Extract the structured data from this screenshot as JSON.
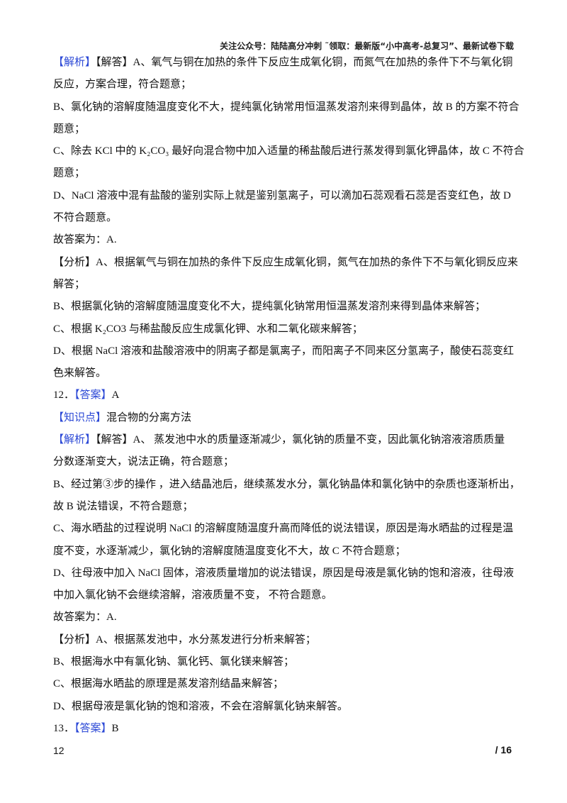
{
  "header": {
    "text": "关注公众号：陆陆高分冲刺  ˜领取：最新版“小中高考-总复习”、最新试卷下载"
  },
  "lines": [
    [
      {
        "tag": "【解析】"
      },
      {
        "text": "【解答】A、氧气与铜在加热的条件下反应生成氧化铜，而氮气在加热的条件下不与氧化铜"
      }
    ],
    [
      {
        "text": "反应，方案合理，符合题意；"
      }
    ],
    [
      {
        "text": "B、氯化钠的溶解度随温度变化不大，提纯氯化钠常用恒温蒸发溶剂来得到晶体，故 B 的方案不符合"
      }
    ],
    [
      {
        "text": "题意；"
      }
    ],
    [
      {
        "text": "C、除去 KCl 中的 K₂CO₃ 最好向混合物中加入适量的稀盐酸后进行蒸发得到氯化钾晶体，故 C 不符合"
      }
    ],
    [
      {
        "text": "题意；"
      }
    ],
    [
      {
        "text": "D、NaCl 溶液中混有盐酸的鉴别实际上就是鉴别氢离子，可以滴加石蕊观看石蕊是否变红色，故 D"
      }
    ],
    [
      {
        "text": "不符合题意。"
      }
    ],
    [
      {
        "text": "故答案为：A."
      }
    ],
    [
      {
        "text": "【分析】A、根据氧气与铜在加热的条件下反应生成氧化铜，氮气在加热的条件下不与氧化铜反应来"
      }
    ],
    [
      {
        "text": "解答；"
      }
    ],
    [
      {
        "text": "B、根据氯化钠的溶解度随温度变化不大，提纯氯化钠常用恒温蒸发溶剂来得到晶体来解答；"
      }
    ],
    [
      {
        "text": "C、根据 K₂CO3 与稀盐酸反应生成氯化钾、水和二氧化碳来解答；"
      }
    ],
    [
      {
        "text": "D、根据 NaCl 溶液和盐酸溶液中的阴离子都是氯离子，而阳离子不同来区分氢离子，酸使石蕊变红"
      }
    ],
    [
      {
        "text": "色来解答。"
      }
    ],
    [
      {
        "text": "12．"
      },
      {
        "tag": "【答案】"
      },
      {
        "text": "A"
      }
    ],
    [
      {
        "tag": "【知识点】"
      },
      {
        "text": "混合物的分离方法"
      }
    ],
    [
      {
        "tag": "【解析】"
      },
      {
        "text": "【解答】A、 蒸发池中水的质量逐渐减少，氯化钠的质量不变，因此氯化钠溶液溶质质量"
      }
    ],
    [
      {
        "text": "分数逐渐变大，说法正确，符合题意；"
      }
    ],
    [
      {
        "text": "B、经过第③步的操作 ，进入结晶池后，继续蒸发水分，氯化钠晶体和氯化钠中的杂质也逐渐析出，"
      }
    ],
    [
      {
        "text": "故 B 说法错误，不符合题意；"
      }
    ],
    [
      {
        "text": "C、海水晒盐的过程说明 NaCl 的溶解度随温度升高而降低的说法错误，原因是海水晒盐的过程是温"
      }
    ],
    [
      {
        "text": "度不变，水逐渐减少，氯化钠的溶解度随温度变化不大，故 C 不符合题意；"
      }
    ],
    [
      {
        "text": "D、往母液中加入 NaCl 固体，溶液质量增加的说法错误，原因是母液是氯化钠的饱和溶液，往母液"
      }
    ],
    [
      {
        "text": "中加入氯化钠不会继续溶解，溶液质量不变， 不符合题意。"
      }
    ],
    [
      {
        "text": "故答案为：A."
      }
    ],
    [
      {
        "text": "【分析】A、根据蒸发池中，水分蒸发进行分析来解答；"
      }
    ],
    [
      {
        "text": "B、根据海水中有氯化钠、氯化钙、氯化镁来解答；"
      }
    ],
    [
      {
        "text": "C、根据海水晒盐的原理是蒸发溶剂结晶来解答；"
      }
    ],
    [
      {
        "text": "D、根据母液是氯化钠的饱和溶液，不会在溶解氯化钠来解答。"
      }
    ],
    [
      {
        "text": "13．"
      },
      {
        "tag": "【答案】"
      },
      {
        "text": "B"
      }
    ]
  ],
  "footer": {
    "page": "12",
    "total": "/ 16"
  },
  "colors": {
    "tag": "#2b48d6"
  }
}
